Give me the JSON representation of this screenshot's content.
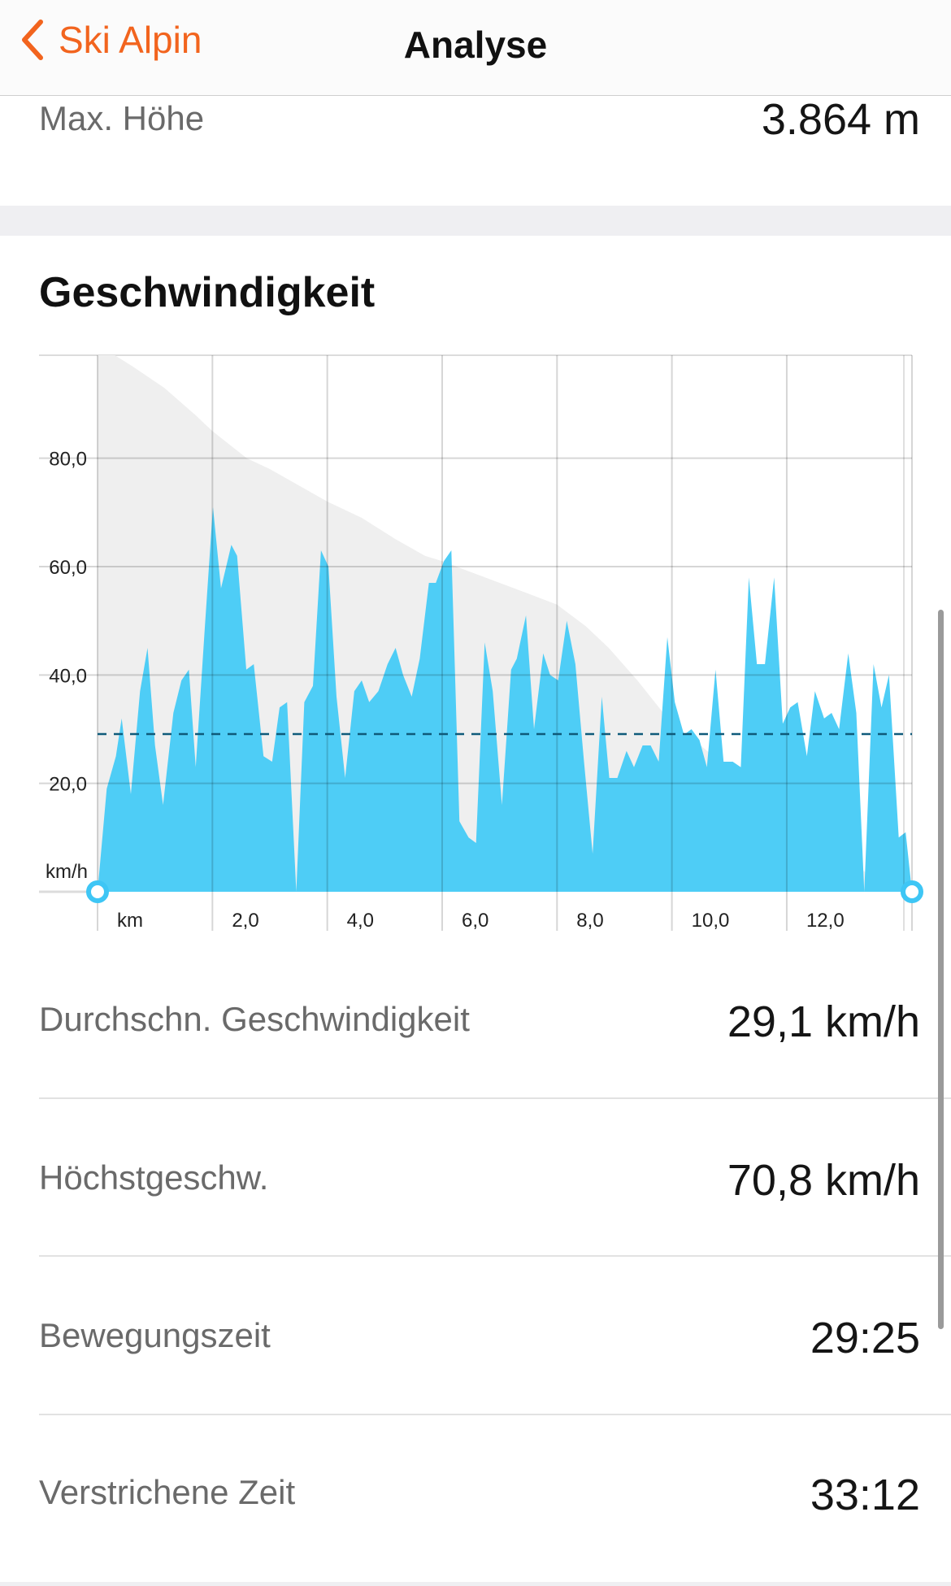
{
  "nav": {
    "back_label": "Ski Alpin",
    "title": "Analyse"
  },
  "max_height": {
    "label": "Max. Höhe",
    "value": "3.864 m"
  },
  "speed_section": {
    "title": "Geschwindigkeit"
  },
  "stats": [
    {
      "label": "Durchschn. Geschwindigkeit",
      "value": "29,1 km/h"
    },
    {
      "label": "Höchstgeschw.",
      "value": "70,8 km/h"
    },
    {
      "label": "Bewegungszeit",
      "value": "29:25"
    },
    {
      "label": "Verstrichene Zeit",
      "value": "33:12"
    }
  ],
  "colors": {
    "accent": "#f2641e",
    "speed_fill": "#3fbfee",
    "elevation_fill": "#efefef",
    "average_line": "#0f5a7a"
  },
  "chart_data": {
    "type": "area",
    "title": "Geschwindigkeit",
    "xlabel": "km",
    "ylabel": "km/h",
    "xlim": [
      0,
      14.18
    ],
    "ylim": [
      0,
      99
    ],
    "x_ticks": [
      {
        "v": 2,
        "label": "2,0"
      },
      {
        "v": 4,
        "label": "4,0"
      },
      {
        "v": 6,
        "label": "6,0"
      },
      {
        "v": 8,
        "label": "8,0"
      },
      {
        "v": 10,
        "label": "10,0"
      },
      {
        "v": 12,
        "label": "12,0"
      }
    ],
    "y_ticks": [
      {
        "v": 20,
        "label": "20,0"
      },
      {
        "v": 40,
        "label": "40,0"
      },
      {
        "v": 60,
        "label": "60,0"
      },
      {
        "v": 80,
        "label": "80,0"
      }
    ],
    "grid": true,
    "average": 29.1,
    "speed": [
      [
        0,
        0
      ],
      [
        0.16,
        19
      ],
      [
        0.32,
        25
      ],
      [
        0.42,
        32
      ],
      [
        0.58,
        18
      ],
      [
        0.74,
        37
      ],
      [
        0.87,
        45
      ],
      [
        1.0,
        27
      ],
      [
        1.14,
        16
      ],
      [
        1.32,
        33
      ],
      [
        1.46,
        39
      ],
      [
        1.59,
        41
      ],
      [
        1.71,
        23
      ],
      [
        1.87,
        49
      ],
      [
        2.01,
        71
      ],
      [
        2.15,
        56
      ],
      [
        2.33,
        64
      ],
      [
        2.43,
        62
      ],
      [
        2.59,
        41
      ],
      [
        2.72,
        42
      ],
      [
        2.89,
        25
      ],
      [
        3.04,
        24
      ],
      [
        3.17,
        34
      ],
      [
        3.3,
        35
      ],
      [
        3.46,
        0
      ],
      [
        3.6,
        35
      ],
      [
        3.75,
        38
      ],
      [
        3.89,
        63
      ],
      [
        4.02,
        60
      ],
      [
        4.16,
        36
      ],
      [
        4.31,
        21
      ],
      [
        4.47,
        37
      ],
      [
        4.6,
        39
      ],
      [
        4.73,
        35
      ],
      [
        4.89,
        37
      ],
      [
        5.05,
        42
      ],
      [
        5.19,
        45
      ],
      [
        5.32,
        40
      ],
      [
        5.47,
        36
      ],
      [
        5.61,
        43
      ],
      [
        5.77,
        57
      ],
      [
        5.89,
        57
      ],
      [
        6.03,
        61
      ],
      [
        6.16,
        63
      ],
      [
        6.3,
        13
      ],
      [
        6.46,
        10
      ],
      [
        6.59,
        9
      ],
      [
        6.74,
        46
      ],
      [
        6.88,
        37
      ],
      [
        7.04,
        16
      ],
      [
        7.2,
        41
      ],
      [
        7.3,
        43
      ],
      [
        7.46,
        51
      ],
      [
        7.6,
        30
      ],
      [
        7.76,
        44
      ],
      [
        7.88,
        40
      ],
      [
        8.02,
        39
      ],
      [
        8.17,
        50
      ],
      [
        8.32,
        42
      ],
      [
        8.47,
        24
      ],
      [
        8.62,
        7
      ],
      [
        8.78,
        36
      ],
      [
        8.91,
        21
      ],
      [
        9.05,
        21
      ],
      [
        9.21,
        26
      ],
      [
        9.34,
        23
      ],
      [
        9.49,
        27
      ],
      [
        9.63,
        27
      ],
      [
        9.77,
        24
      ],
      [
        9.92,
        47
      ],
      [
        10.05,
        35
      ],
      [
        10.21,
        29
      ],
      [
        10.34,
        30
      ],
      [
        10.48,
        28
      ],
      [
        10.61,
        23
      ],
      [
        10.76,
        41
      ],
      [
        10.9,
        24
      ],
      [
        11.06,
        24
      ],
      [
        11.2,
        23
      ],
      [
        11.34,
        58
      ],
      [
        11.48,
        42
      ],
      [
        11.62,
        42
      ],
      [
        11.78,
        58
      ],
      [
        11.93,
        31
      ],
      [
        12.06,
        34
      ],
      [
        12.19,
        35
      ],
      [
        12.35,
        25
      ],
      [
        12.49,
        37
      ],
      [
        12.65,
        32
      ],
      [
        12.78,
        33
      ],
      [
        12.91,
        30
      ],
      [
        13.07,
        44
      ],
      [
        13.21,
        33
      ],
      [
        13.35,
        0
      ],
      [
        13.51,
        42
      ],
      [
        13.65,
        34
      ],
      [
        13.78,
        40
      ],
      [
        13.95,
        10
      ],
      [
        14.07,
        11
      ],
      [
        14.18,
        0
      ]
    ],
    "elevation_relative": [
      [
        0,
        100
      ],
      [
        0.3,
        99
      ],
      [
        0.6,
        97
      ],
      [
        1.16,
        93
      ],
      [
        1.7,
        88
      ],
      [
        2.0,
        85
      ],
      [
        2.6,
        80
      ],
      [
        3.0,
        78
      ],
      [
        3.5,
        75
      ],
      [
        4.0,
        72
      ],
      [
        4.6,
        69
      ],
      [
        5.2,
        65
      ],
      [
        5.7,
        62
      ],
      [
        6.0,
        61
      ],
      [
        6.5,
        59
      ],
      [
        7.0,
        57
      ],
      [
        7.5,
        55
      ],
      [
        8.0,
        53
      ],
      [
        8.5,
        49
      ],
      [
        8.9,
        45
      ],
      [
        9.4,
        39
      ],
      [
        10.0,
        31
      ],
      [
        10.5,
        27
      ],
      [
        11.0,
        22.5
      ],
      [
        11.5,
        17
      ],
      [
        12.0,
        13
      ],
      [
        12.5,
        9.5
      ],
      [
        13.1,
        5.5
      ],
      [
        13.6,
        2
      ],
      [
        14.18,
        0
      ]
    ]
  }
}
